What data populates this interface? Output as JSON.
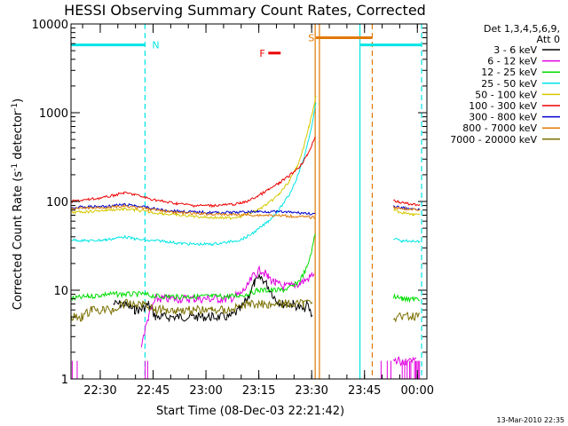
{
  "chart_data": {
    "type": "line",
    "title": "HESSI Observing Summary Count Rates, Corrected",
    "xlabel": "Start Time (08-Dec-03 22:21:42)",
    "ylabel": "Corrected Count Rate (s",
    "ylabel_sup": "-1",
    "ylabel_rest": " detector",
    "ylabel_close": ")",
    "x_scale": "time (minutes after 22:21:42)",
    "x_ticks": [
      {
        "label": "22:30",
        "value": 8.3
      },
      {
        "label": "22:45",
        "value": 23.3
      },
      {
        "label": "23:00",
        "value": 38.3
      },
      {
        "label": "23:15",
        "value": 53.3
      },
      {
        "label": "23:30",
        "value": 68.3
      },
      {
        "label": "23:45",
        "value": 83.3
      },
      {
        "label": "00:00",
        "value": 98.3
      }
    ],
    "xlim": [
      0,
      101
    ],
    "y_scale": "log",
    "y_ticks": [
      {
        "label": "1",
        "value": 1
      },
      {
        "label": "10",
        "value": 10
      },
      {
        "label": "100",
        "value": 100
      },
      {
        "label": "1000",
        "value": 1000
      },
      {
        "label": "10000",
        "value": 10000
      }
    ],
    "ylim": [
      1,
      10000
    ],
    "legend_header": [
      "Det 1,3,4,5,6,9,",
      "Att 0"
    ],
    "legend_position": "right",
    "series": [
      {
        "name": "3 - 6 keV",
        "color": "#000000",
        "points": [
          [
            12,
            7
          ],
          [
            15,
            7
          ],
          [
            18,
            6
          ],
          [
            20,
            6
          ],
          [
            22,
            7
          ],
          [
            24,
            5
          ],
          [
            26,
            5
          ],
          [
            30,
            5
          ],
          [
            35,
            5
          ],
          [
            40,
            5
          ],
          [
            45,
            5
          ],
          [
            48,
            6
          ],
          [
            50,
            8
          ],
          [
            52,
            12
          ],
          [
            54,
            14
          ],
          [
            56,
            11
          ],
          [
            58,
            8
          ],
          [
            60,
            7
          ],
          [
            63,
            7
          ],
          [
            66,
            6
          ],
          [
            67,
            7
          ],
          [
            68.5,
            5
          ]
        ]
      },
      {
        "name": "6 - 12 keV",
        "color": "#e000e0",
        "points": [
          [
            20,
            2.5
          ],
          [
            22,
            5
          ],
          [
            24,
            8
          ],
          [
            26,
            8
          ],
          [
            30,
            8
          ],
          [
            35,
            8
          ],
          [
            40,
            8
          ],
          [
            45,
            8
          ],
          [
            48,
            9
          ],
          [
            50,
            11
          ],
          [
            52,
            15
          ],
          [
            54,
            17
          ],
          [
            56,
            14
          ],
          [
            58,
            12
          ],
          [
            60,
            11
          ],
          [
            62,
            11
          ],
          [
            65,
            12
          ],
          [
            68,
            14
          ],
          [
            69,
            16
          ]
        ]
      },
      {
        "name": "12 - 25 keV",
        "color": "#00dd00",
        "points": [
          [
            0,
            8
          ],
          [
            5,
            8.5
          ],
          [
            10,
            9
          ],
          [
            15,
            9
          ],
          [
            20,
            9
          ],
          [
            25,
            8.5
          ],
          [
            30,
            8.5
          ],
          [
            35,
            8.5
          ],
          [
            40,
            8.5
          ],
          [
            45,
            8.5
          ],
          [
            50,
            9
          ],
          [
            53,
            10
          ],
          [
            56,
            10
          ],
          [
            60,
            10
          ],
          [
            63,
            11
          ],
          [
            65,
            13
          ],
          [
            67,
            18
          ],
          [
            68.5,
            30
          ],
          [
            69.3,
            45
          ]
        ]
      },
      {
        "name": "25 - 50 keV",
        "color": "#00e5e5",
        "points": [
          [
            0,
            37
          ],
          [
            5,
            36
          ],
          [
            10,
            37
          ],
          [
            15,
            40
          ],
          [
            18,
            38
          ],
          [
            22,
            36
          ],
          [
            26,
            36
          ],
          [
            30,
            34
          ],
          [
            35,
            33
          ],
          [
            40,
            33
          ],
          [
            45,
            35
          ],
          [
            48,
            37
          ],
          [
            50,
            40
          ],
          [
            53,
            48
          ],
          [
            56,
            60
          ],
          [
            59,
            80
          ],
          [
            62,
            120
          ],
          [
            64,
            180
          ],
          [
            66,
            300
          ],
          [
            67.5,
            500
          ],
          [
            69,
            1000
          ],
          [
            69.5,
            1300
          ]
        ]
      },
      {
        "name": "50 - 100 keV",
        "color": "#d6c800",
        "points": [
          [
            0,
            75
          ],
          [
            5,
            77
          ],
          [
            10,
            80
          ],
          [
            15,
            82
          ],
          [
            18,
            80
          ],
          [
            22,
            76
          ],
          [
            26,
            73
          ],
          [
            30,
            70
          ],
          [
            35,
            68
          ],
          [
            40,
            66
          ],
          [
            45,
            65
          ],
          [
            48,
            68
          ],
          [
            50,
            72
          ],
          [
            53,
            80
          ],
          [
            56,
            95
          ],
          [
            59,
            120
          ],
          [
            62,
            170
          ],
          [
            64,
            240
          ],
          [
            66,
            400
          ],
          [
            67.5,
            700
          ],
          [
            69,
            1200
          ],
          [
            69.5,
            1500
          ]
        ]
      },
      {
        "name": "100 - 300 keV",
        "color": "#ee0000",
        "points": [
          [
            0,
            100
          ],
          [
            5,
            105
          ],
          [
            10,
            112
          ],
          [
            15,
            125
          ],
          [
            18,
            120
          ],
          [
            22,
            108
          ],
          [
            26,
            100
          ],
          [
            30,
            95
          ],
          [
            35,
            90
          ],
          [
            40,
            90
          ],
          [
            45,
            92
          ],
          [
            48,
            95
          ],
          [
            50,
            100
          ],
          [
            53,
            115
          ],
          [
            56,
            135
          ],
          [
            59,
            160
          ],
          [
            62,
            195
          ],
          [
            65,
            250
          ],
          [
            67,
            330
          ],
          [
            68.5,
            450
          ],
          [
            69.3,
            550
          ]
        ]
      },
      {
        "name": "300 - 800 keV",
        "color": "#0000cc",
        "points": [
          [
            0,
            85
          ],
          [
            5,
            87
          ],
          [
            10,
            88
          ],
          [
            15,
            92
          ],
          [
            18,
            90
          ],
          [
            22,
            85
          ],
          [
            26,
            80
          ],
          [
            30,
            78
          ],
          [
            35,
            76
          ],
          [
            40,
            75
          ],
          [
            45,
            75
          ],
          [
            50,
            76
          ],
          [
            53,
            77
          ],
          [
            56,
            77
          ],
          [
            60,
            76
          ],
          [
            63,
            75
          ],
          [
            66,
            74
          ],
          [
            69.3,
            72
          ]
        ]
      },
      {
        "name": "800 - 7000 keV",
        "color": "#e07800",
        "points": [
          [
            0,
            82
          ],
          [
            5,
            84
          ],
          [
            10,
            86
          ],
          [
            15,
            88
          ],
          [
            18,
            86
          ],
          [
            22,
            82
          ],
          [
            26,
            78
          ],
          [
            30,
            75
          ],
          [
            35,
            73
          ],
          [
            40,
            72
          ],
          [
            45,
            71
          ],
          [
            50,
            71
          ],
          [
            53,
            70
          ],
          [
            56,
            70
          ],
          [
            60,
            69
          ],
          [
            63,
            68
          ],
          [
            66,
            67
          ],
          [
            69.3,
            66
          ]
        ]
      },
      {
        "name": "7000 - 20000 keV",
        "color": "#7a7000",
        "points": [
          [
            0,
            5
          ],
          [
            3,
            5
          ],
          [
            6,
            6
          ],
          [
            9,
            6
          ],
          [
            12,
            6
          ],
          [
            15,
            7
          ],
          [
            18,
            7
          ],
          [
            21,
            7
          ],
          [
            24,
            6
          ],
          [
            27,
            6
          ],
          [
            30,
            6
          ],
          [
            35,
            6
          ],
          [
            40,
            6
          ],
          [
            45,
            6
          ],
          [
            50,
            7
          ],
          [
            53,
            7
          ],
          [
            56,
            7
          ],
          [
            60,
            7
          ],
          [
            63,
            7
          ],
          [
            66,
            7
          ],
          [
            68.5,
            8
          ]
        ]
      }
    ],
    "series_after_gap": [
      {
        "color": "#ee0000",
        "points": [
          [
            91.5,
            105
          ],
          [
            93,
            98
          ],
          [
            95,
            95
          ],
          [
            97,
            93
          ],
          [
            99,
            92
          ]
        ]
      },
      {
        "color": "#d6c800",
        "points": [
          [
            91.5,
            82
          ],
          [
            93,
            76
          ],
          [
            95,
            74
          ],
          [
            97,
            72
          ],
          [
            99,
            70
          ]
        ]
      },
      {
        "color": "#0000cc",
        "points": [
          [
            91.5,
            88
          ],
          [
            95,
            84
          ],
          [
            99,
            82
          ]
        ]
      },
      {
        "color": "#e07800",
        "points": [
          [
            91.5,
            86
          ],
          [
            95,
            82
          ],
          [
            99,
            80
          ]
        ]
      },
      {
        "color": "#00e5e5",
        "points": [
          [
            91.5,
            38
          ],
          [
            94,
            36
          ],
          [
            97,
            36
          ],
          [
            99,
            35
          ]
        ]
      },
      {
        "color": "#00dd00",
        "points": [
          [
            91.5,
            8.5
          ],
          [
            94,
            8
          ],
          [
            97,
            8
          ],
          [
            99,
            8
          ]
        ]
      },
      {
        "color": "#7a7000",
        "points": [
          [
            91.5,
            5
          ],
          [
            94,
            5
          ],
          [
            97,
            5
          ],
          [
            99,
            5
          ]
        ]
      },
      {
        "color": "#e000e0",
        "points": [
          [
            91.5,
            1.6
          ],
          [
            95,
            1.6
          ],
          [
            98,
            1.6
          ]
        ]
      }
    ],
    "annotations": [
      {
        "label": "N",
        "color": "#00e5e5",
        "x_range": [
          0,
          21
        ],
        "level": 5800,
        "marker_x": 21
      },
      {
        "label": "F",
        "color": "#ee0000",
        "x_range": [
          56,
          59.5
        ],
        "level": 4700,
        "label_x": 53.5
      },
      {
        "label": "S",
        "color": "#e07800",
        "x_range": [
          69.5,
          85.5
        ],
        "level": 7000,
        "label_x": 67.3
      },
      {
        "label": "",
        "color": "#00e5e5",
        "x_range": [
          82,
          99.5
        ],
        "level": 5800
      }
    ],
    "footer_date": "13-Mar-2010 22:35"
  }
}
